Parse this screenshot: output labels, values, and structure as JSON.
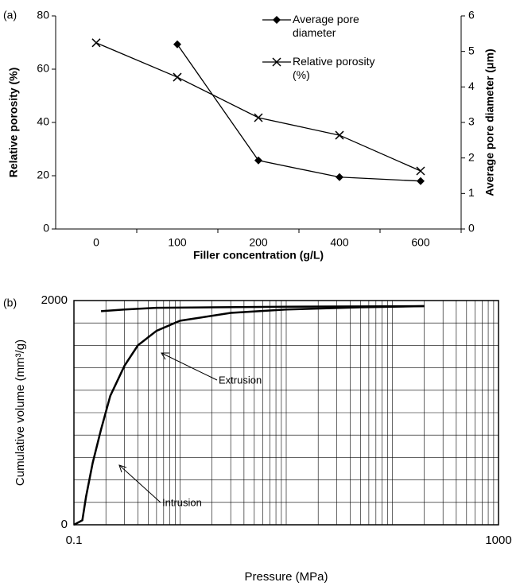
{
  "chart_data": [
    {
      "type": "line",
      "panel_label": "(a)",
      "categories": [
        "0",
        "100",
        "200",
        "400",
        "600"
      ],
      "xlabel": "Filler concentration (g/L)",
      "ylabel": "Relative porosity (%)",
      "y2label": "Average pore diameter (μm)",
      "ylim": [
        0,
        80
      ],
      "yticks": [
        0,
        20,
        40,
        60,
        80
      ],
      "y2lim": [
        0,
        6
      ],
      "y2ticks": [
        0,
        1,
        2,
        3,
        4,
        5,
        6
      ],
      "legend": "upper right",
      "series": [
        {
          "name": "Average pore diameter",
          "color": "#000000",
          "marker": "diamond",
          "axis": "y2",
          "values": [
            null,
            5.2,
            1.93,
            1.46,
            1.35
          ]
        },
        {
          "name": "Relative porosity (%)",
          "color": "#000000",
          "marker": "x",
          "values": [
            69.9,
            57.0,
            41.8,
            35.2,
            21.8
          ]
        }
      ]
    },
    {
      "type": "line",
      "panel_label": "(b)",
      "xscale": "log",
      "xlabel": "Pressure (MPa)",
      "ylabel": "Cumulative volume (mm³/g)",
      "xlim": [
        0.1,
        1000
      ],
      "xticks": [
        0.1,
        1000
      ],
      "ylim": [
        0,
        2000
      ],
      "yticks": [
        0,
        2000
      ],
      "grid": true,
      "xgrid": [
        0.1,
        0.2,
        0.3,
        0.4,
        0.5,
        0.6,
        0.7,
        0.8,
        0.9,
        1,
        2,
        3,
        4,
        5,
        6,
        7,
        8,
        9,
        10,
        20,
        30,
        40,
        50,
        60,
        70,
        80,
        90,
        100,
        200,
        300,
        400,
        500,
        600,
        700,
        800,
        900,
        1000
      ],
      "ygrid": [
        0,
        200,
        400,
        600,
        800,
        1000,
        1200,
        1400,
        1600,
        1800,
        2000
      ],
      "series": [
        {
          "name": "Intrusion",
          "color": "#000000",
          "x": [
            0.1,
            0.12,
            0.13,
            0.15,
            0.18,
            0.22,
            0.3,
            0.4,
            0.6,
            1,
            3,
            10,
            50,
            200
          ],
          "values": [
            0,
            40,
            250,
            550,
            850,
            1150,
            1420,
            1600,
            1730,
            1820,
            1890,
            1920,
            1940,
            1950
          ]
        },
        {
          "name": "Extrusion",
          "color": "#000000",
          "x": [
            0.18,
            0.3,
            0.6,
            2,
            10,
            50,
            200
          ],
          "values": [
            1905,
            1920,
            1935,
            1940,
            1945,
            1948,
            1950
          ]
        }
      ]
    }
  ]
}
